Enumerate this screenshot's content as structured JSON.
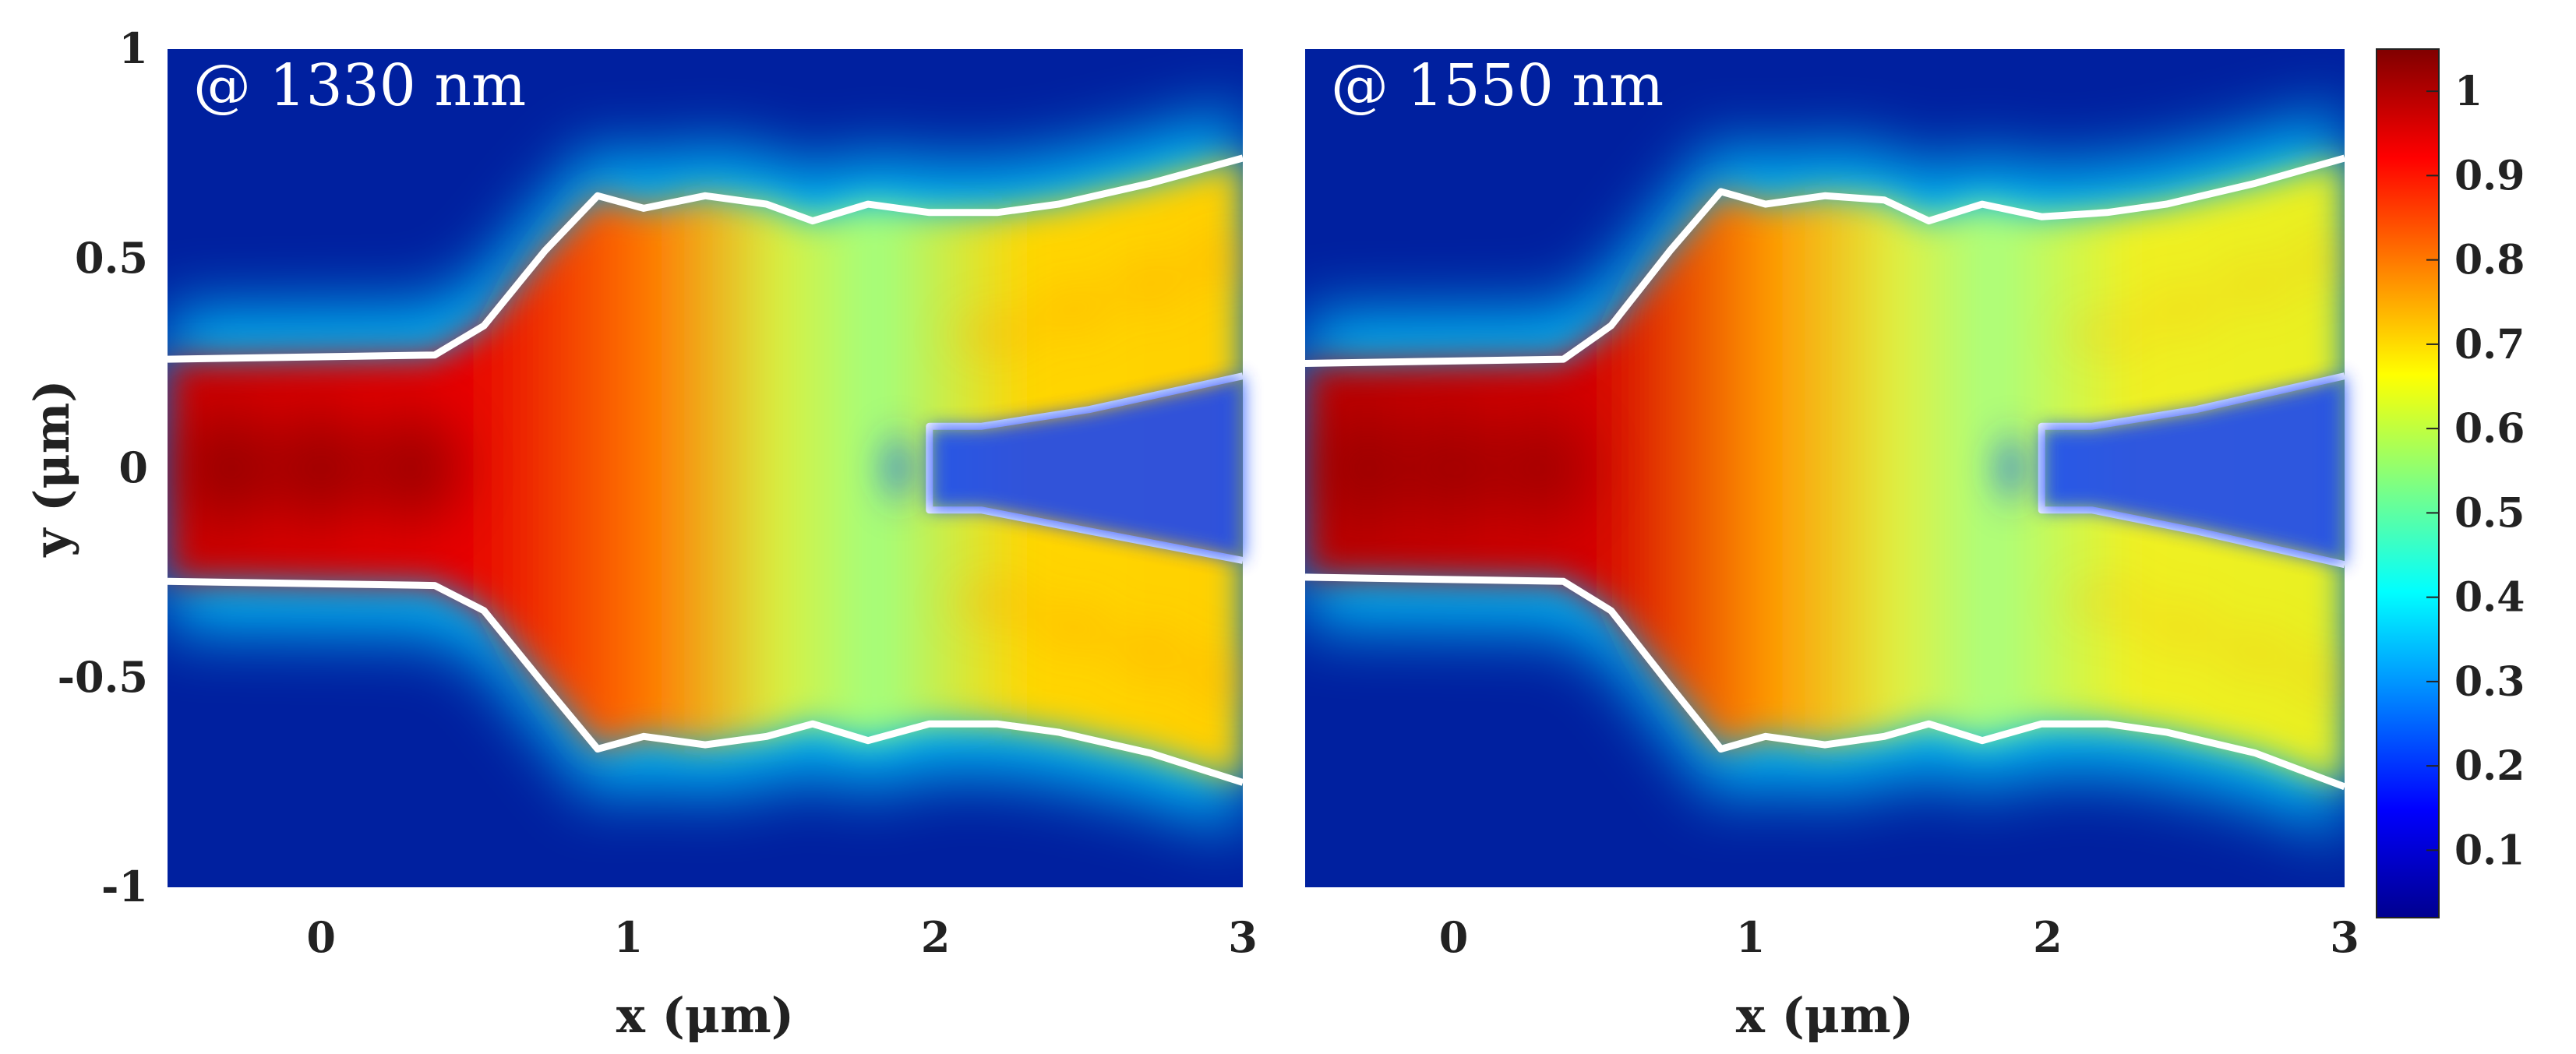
{
  "chart_data": [
    {
      "type": "heatmap",
      "title": "@ 1330 nm",
      "xlabel": "x (μm)",
      "ylabel": "y (μm)",
      "xlim": [
        -0.5,
        3
      ],
      "ylim": [
        -1,
        1
      ],
      "xticks": [
        0,
        1,
        2,
        3
      ],
      "xtick_labels": [
        "0",
        "1",
        "2",
        "3"
      ],
      "yticks": [
        1,
        0.5,
        0,
        -0.5,
        -1
      ],
      "ytick_labels": [
        "1",
        "0.5",
        "0",
        "-0.5",
        "-1"
      ],
      "intensity": {
        "trunk": 0.98,
        "branch_peak": 0.72,
        "taper_mid": 0.6
      },
      "waveguide_outline": {
        "top": [
          [
            -0.5,
            0.26
          ],
          [
            0.37,
            0.27
          ],
          [
            0.53,
            0.34
          ],
          [
            0.73,
            0.52
          ],
          [
            0.9,
            0.65
          ],
          [
            1.05,
            0.62
          ],
          [
            1.25,
            0.65
          ],
          [
            1.45,
            0.63
          ],
          [
            1.6,
            0.59
          ],
          [
            1.78,
            0.63
          ],
          [
            1.98,
            0.61
          ],
          [
            2.2,
            0.61
          ],
          [
            2.4,
            0.63
          ],
          [
            2.7,
            0.68
          ],
          [
            3.0,
            0.74
          ]
        ],
        "bottom": [
          [
            -0.5,
            -0.27
          ],
          [
            0.37,
            -0.28
          ],
          [
            0.53,
            -0.34
          ],
          [
            0.73,
            -0.52
          ],
          [
            0.9,
            -0.67
          ],
          [
            1.05,
            -0.64
          ],
          [
            1.25,
            -0.66
          ],
          [
            1.45,
            -0.64
          ],
          [
            1.6,
            -0.61
          ],
          [
            1.78,
            -0.65
          ],
          [
            1.98,
            -0.61
          ],
          [
            2.2,
            -0.61
          ],
          [
            2.4,
            -0.63
          ],
          [
            2.7,
            -0.68
          ],
          [
            3.0,
            -0.75
          ]
        ],
        "gap": [
          [
            3.0,
            0.22
          ],
          [
            2.5,
            0.14
          ],
          [
            2.15,
            0.1
          ],
          [
            1.98,
            0.1
          ],
          [
            1.98,
            -0.1
          ],
          [
            2.15,
            -0.1
          ],
          [
            2.5,
            -0.15
          ],
          [
            3.0,
            -0.22
          ]
        ]
      }
    },
    {
      "type": "heatmap",
      "title": "@ 1550 nm",
      "xlabel": "x (μm)",
      "ylabel": "",
      "xlim": [
        -0.5,
        3
      ],
      "ylim": [
        -1,
        1
      ],
      "xticks": [
        0,
        1,
        2,
        3
      ],
      "xtick_labels": [
        "0",
        "1",
        "2",
        "3"
      ],
      "intensity": {
        "trunk": 0.93,
        "branch_peak": 0.62,
        "taper_mid": 0.55
      },
      "waveguide_outline": {
        "top": [
          [
            -0.5,
            0.25
          ],
          [
            0.37,
            0.26
          ],
          [
            0.53,
            0.34
          ],
          [
            0.73,
            0.52
          ],
          [
            0.9,
            0.66
          ],
          [
            1.05,
            0.63
          ],
          [
            1.25,
            0.65
          ],
          [
            1.45,
            0.64
          ],
          [
            1.6,
            0.59
          ],
          [
            1.78,
            0.63
          ],
          [
            1.98,
            0.6
          ],
          [
            2.2,
            0.61
          ],
          [
            2.4,
            0.63
          ],
          [
            2.7,
            0.68
          ],
          [
            3.0,
            0.74
          ]
        ],
        "bottom": [
          [
            -0.5,
            -0.26
          ],
          [
            0.37,
            -0.27
          ],
          [
            0.53,
            -0.34
          ],
          [
            0.73,
            -0.52
          ],
          [
            0.9,
            -0.67
          ],
          [
            1.05,
            -0.64
          ],
          [
            1.25,
            -0.66
          ],
          [
            1.45,
            -0.64
          ],
          [
            1.6,
            -0.61
          ],
          [
            1.78,
            -0.65
          ],
          [
            1.98,
            -0.61
          ],
          [
            2.2,
            -0.61
          ],
          [
            2.4,
            -0.63
          ],
          [
            2.7,
            -0.68
          ],
          [
            3.0,
            -0.76
          ]
        ],
        "gap": [
          [
            3.0,
            0.22
          ],
          [
            2.5,
            0.14
          ],
          [
            2.15,
            0.1
          ],
          [
            1.98,
            0.1
          ],
          [
            1.98,
            -0.1
          ],
          [
            2.15,
            -0.1
          ],
          [
            2.5,
            -0.15
          ],
          [
            3.0,
            -0.23
          ]
        ]
      }
    }
  ],
  "colorbar": {
    "colormap": "jet",
    "range": [
      0.02,
      1.05
    ],
    "ticks": [
      1,
      0.9,
      0.8,
      0.7,
      0.6,
      0.5,
      0.4,
      0.3,
      0.2,
      0.1
    ],
    "tick_labels": [
      "1",
      "0.9",
      "0.8",
      "0.7",
      "0.6",
      "0.5",
      "0.4",
      "0.3",
      "0.2",
      "0.1"
    ],
    "colors": [
      "#00008f",
      "#0000ff",
      "#0080ff",
      "#00ffff",
      "#80ff80",
      "#ffff00",
      "#ff8000",
      "#ff0000",
      "#800000"
    ]
  },
  "colors": {
    "outline": "#ffffff",
    "background": "#00209f"
  }
}
